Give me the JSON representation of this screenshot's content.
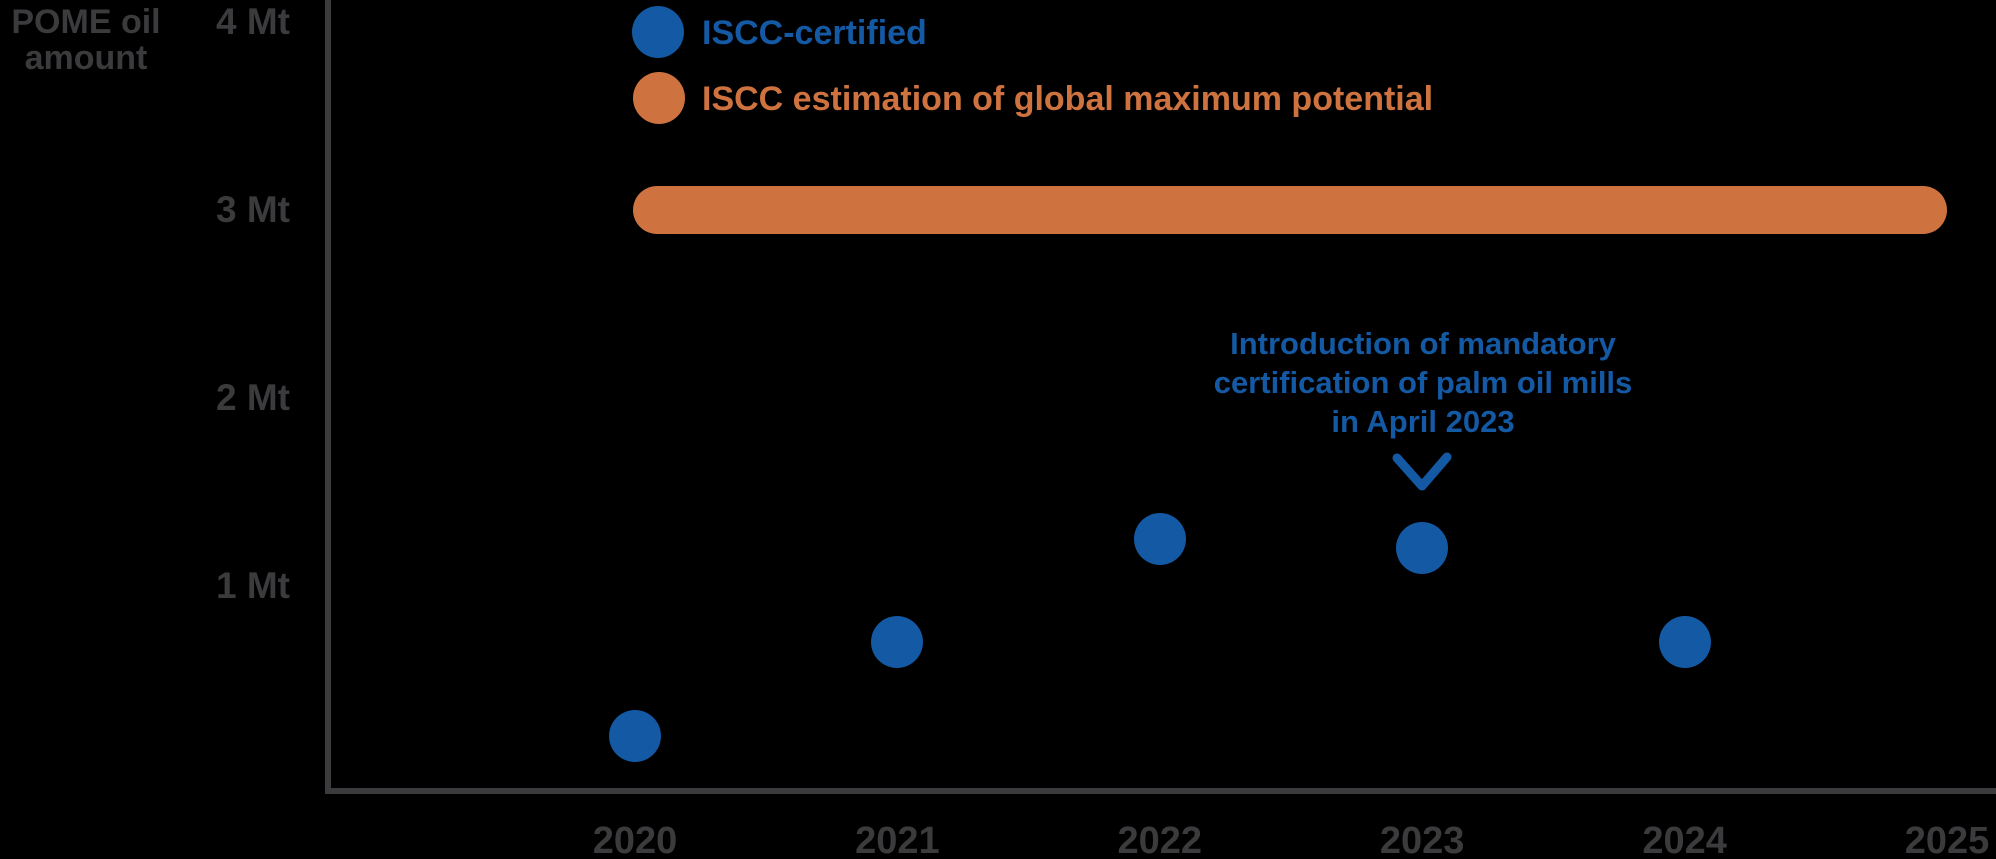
{
  "y_axis_title": {
    "line1": "POME oil",
    "line2": "amount"
  },
  "legend": {
    "items": [
      {
        "label": "ISCC-certified",
        "color": "#1459A4"
      },
      {
        "label": "ISCC estimation of global maximum potential",
        "color": "#CE7340"
      }
    ]
  },
  "annotation": {
    "line1": "Introduction of mandatory",
    "line2": "certification of palm oil mills",
    "line3": "in April 2023"
  },
  "colors": {
    "blue": "#1459A4",
    "orange": "#CE7340",
    "axis_gray": "#3B3B3D",
    "background": "#000000"
  },
  "chart_data": {
    "type": "scatter",
    "title": "",
    "ylabel": "POME oil amount",
    "unit": "Mt",
    "x": [
      2020,
      2021,
      2022,
      2023,
      2024,
      2025
    ],
    "yticks": [
      {
        "value": 4,
        "label": "4 Mt"
      },
      {
        "value": 3,
        "label": "3 Mt"
      },
      {
        "value": 2,
        "label": "2 Mt"
      },
      {
        "value": 1,
        "label": "1 Mt"
      }
    ],
    "ylim": [
      0,
      4.2
    ],
    "grid": false,
    "legend_position": "top-left",
    "series": [
      {
        "name": "ISCC-certified",
        "type": "scatter",
        "marker": "circle",
        "color": "#1459A4",
        "x": [
          2020,
          2021,
          2022,
          2023,
          2024
        ],
        "values": [
          0.2,
          0.7,
          1.25,
          1.2,
          0.7
        ]
      },
      {
        "name": "ISCC estimation of global maximum potential",
        "type": "horizontal_band",
        "color": "#CE7340",
        "value": 3.0,
        "x_span": [
          2020,
          2025
        ]
      }
    ],
    "annotation": {
      "text": "Introduction of mandatory certification of palm oil mills in April 2023",
      "target_x": 2023,
      "arrow": "chevron-down"
    }
  }
}
